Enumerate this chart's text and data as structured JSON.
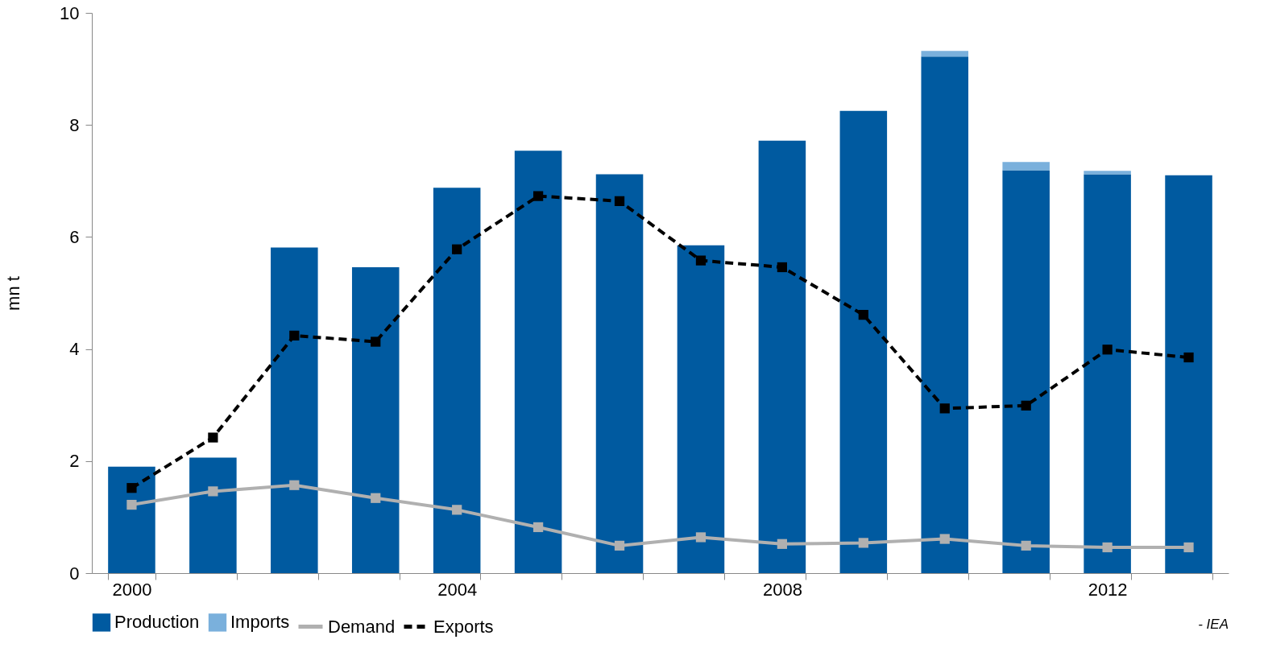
{
  "chart_data": {
    "type": "bar",
    "stacked": true,
    "ylabel": "mn t",
    "categories": [
      "2000",
      null,
      null,
      null,
      "2004",
      null,
      null,
      null,
      "2008",
      null,
      null,
      null,
      "2012",
      null
    ],
    "series": [
      {
        "name": "Production",
        "color": "#005aa0",
        "values": [
          1.9,
          2.06,
          5.81,
          5.46,
          6.88,
          7.54,
          7.12,
          5.85,
          7.72,
          8.25,
          9.22,
          7.19,
          7.12,
          7.1
        ]
      },
      {
        "name": "Imports",
        "color": "#7ab0dc",
        "values": [
          0,
          0,
          0,
          0,
          0,
          0,
          0,
          0,
          0,
          0,
          0.1,
          0.15,
          0.06,
          0
        ]
      },
      {
        "name": "Demand",
        "type": "line",
        "color": "#b0b0b0",
        "line_style": "solid",
        "marker": "square",
        "values": [
          1.22,
          1.46,
          1.57,
          1.34,
          1.13,
          0.82,
          0.49,
          0.64,
          0.52,
          0.54,
          0.61,
          0.49,
          0.46,
          0.46
        ]
      },
      {
        "name": "Exports",
        "type": "line",
        "color": "#000000",
        "line_style": "dashed",
        "marker": "square",
        "values": [
          1.52,
          2.42,
          4.24,
          4.13,
          5.78,
          6.73,
          6.64,
          5.58,
          5.46,
          4.61,
          2.94,
          2.99,
          3.99,
          3.85
        ]
      }
    ],
    "ylim": [
      0,
      10
    ],
    "yticks": [
      0,
      2,
      4,
      6,
      8,
      10
    ],
    "grid": false,
    "legend": "bottom",
    "annotations": [
      "- IEA"
    ]
  }
}
